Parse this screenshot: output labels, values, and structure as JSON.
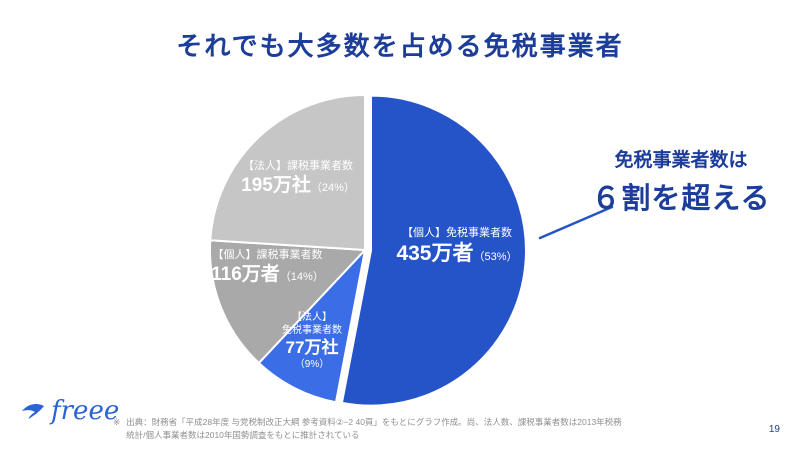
{
  "slide": {
    "title": "それでも大多数を占める免税事業者",
    "page_number": "19",
    "logo_text": "freee",
    "footnote": {
      "marker": "※",
      "lines": [
        "出典：財務省「平成28年度 与党税制改正大綱 参考資料②−2 40頁」をもとにグラフ作成。尚、法人数、課税事業者数は2013年税務",
        "統計/個人事業者数は2010年国勢調査をもとに推計されている"
      ]
    }
  },
  "annotation": {
    "line1": "免税事業者数は",
    "line2": "６割を超える",
    "color": "#1c3d99"
  },
  "chart_data": {
    "type": "pie",
    "title": "それでも大多数を占める免税事業者",
    "direction": "clockwise",
    "start_angle_deg": 0,
    "slices": [
      {
        "name": "【個人】免税事業者数",
        "value": "435万者",
        "pct_text": "（53%）",
        "percent": 53,
        "color": "#2553c8"
      },
      {
        "name": "【法人】免税事業者数",
        "name_line1": "【法人】",
        "name_line2": "免税事業者数",
        "value": "77万社",
        "pct_text": "（9%）",
        "percent": 9,
        "color": "#3a6de6"
      },
      {
        "name": "【個人】課税事業者数",
        "value": "116万者",
        "pct_text": "（14%）",
        "percent": 14,
        "color": "#a9a9a9"
      },
      {
        "name": "【法人】課税事業者数",
        "value": "195万社",
        "pct_text": "（24%）",
        "percent": 24,
        "color": "#c6c6c6"
      }
    ]
  }
}
